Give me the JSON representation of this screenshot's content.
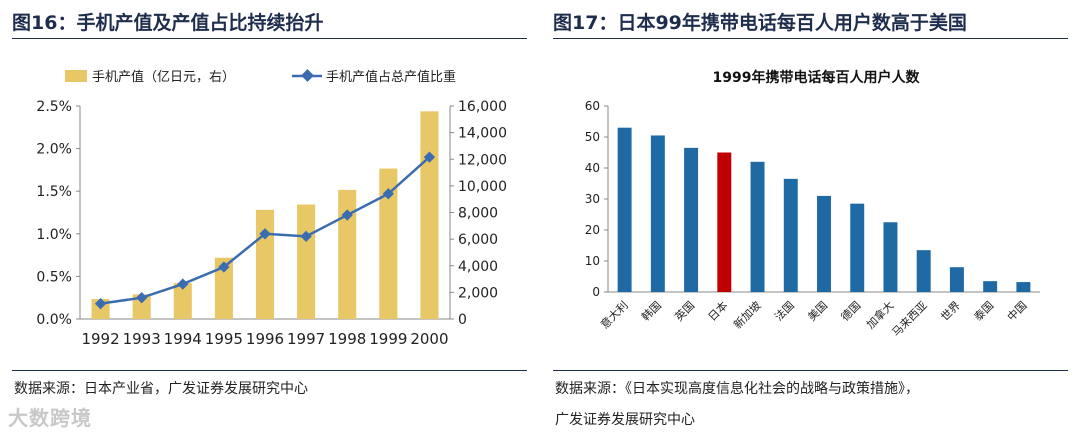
{
  "left": {
    "title": "图16：手机产值及产值占比持续抬升",
    "source": "数据来源：日本产业省，广发证券发展研究中心"
  },
  "right": {
    "title": "图17：日本99年携带电话每百人用户数高于美国",
    "source_line1": "数据来源：《日本实现高度信息化社会的战略与政策措施》，",
    "source_line2": "广发证券发展研究中心"
  },
  "watermark": "大数跨境",
  "colors": {
    "bar_gold": "#e8c766",
    "line_blue": "#3a6db0",
    "bar_blue": "#1f6aa5",
    "bar_red": "#c00000"
  },
  "chart_data": [
    {
      "type": "bar",
      "title": "",
      "categories": [
        "1992",
        "1993",
        "1994",
        "1995",
        "1996",
        "1997",
        "1998",
        "1999",
        "2000"
      ],
      "series": [
        {
          "name": "手机产值（亿日元，右）",
          "type": "bar",
          "axis": "right",
          "values": [
            1500,
            1850,
            2700,
            4600,
            8200,
            8600,
            9700,
            11300,
            15600
          ]
        },
        {
          "name": "手机产值占总产值比重",
          "type": "line",
          "axis": "left",
          "values": [
            0.18,
            0.25,
            0.41,
            0.61,
            1.0,
            0.97,
            1.22,
            1.47,
            1.9
          ]
        }
      ],
      "ylim_left": [
        0,
        2.5
      ],
      "yticks_left": [
        "0.0%",
        "0.5%",
        "1.0%",
        "1.5%",
        "2.0%",
        "2.5%"
      ],
      "ylim_right": [
        0,
        16000
      ],
      "yticks_right": [
        "0",
        "2,000",
        "4,000",
        "6,000",
        "8,000",
        "10,000",
        "12,000",
        "14,000",
        "16,000"
      ],
      "legend_position": "top"
    },
    {
      "type": "bar",
      "title": "1999年携带电话每百人用户人数",
      "categories": [
        "意大利",
        "韩国",
        "英国",
        "日本",
        "新加坡",
        "法国",
        "美国",
        "德国",
        "加拿大",
        "马来西亚",
        "世界",
        "泰国",
        "中国"
      ],
      "values": [
        53,
        50.5,
        46.5,
        45,
        42,
        36.5,
        31,
        28.5,
        22.5,
        13.5,
        8,
        3.5,
        3.2
      ],
      "highlight": "日本",
      "ylim": [
        0,
        60
      ],
      "yticks": [
        "0",
        "10",
        "20",
        "30",
        "40",
        "50",
        "60"
      ]
    }
  ]
}
